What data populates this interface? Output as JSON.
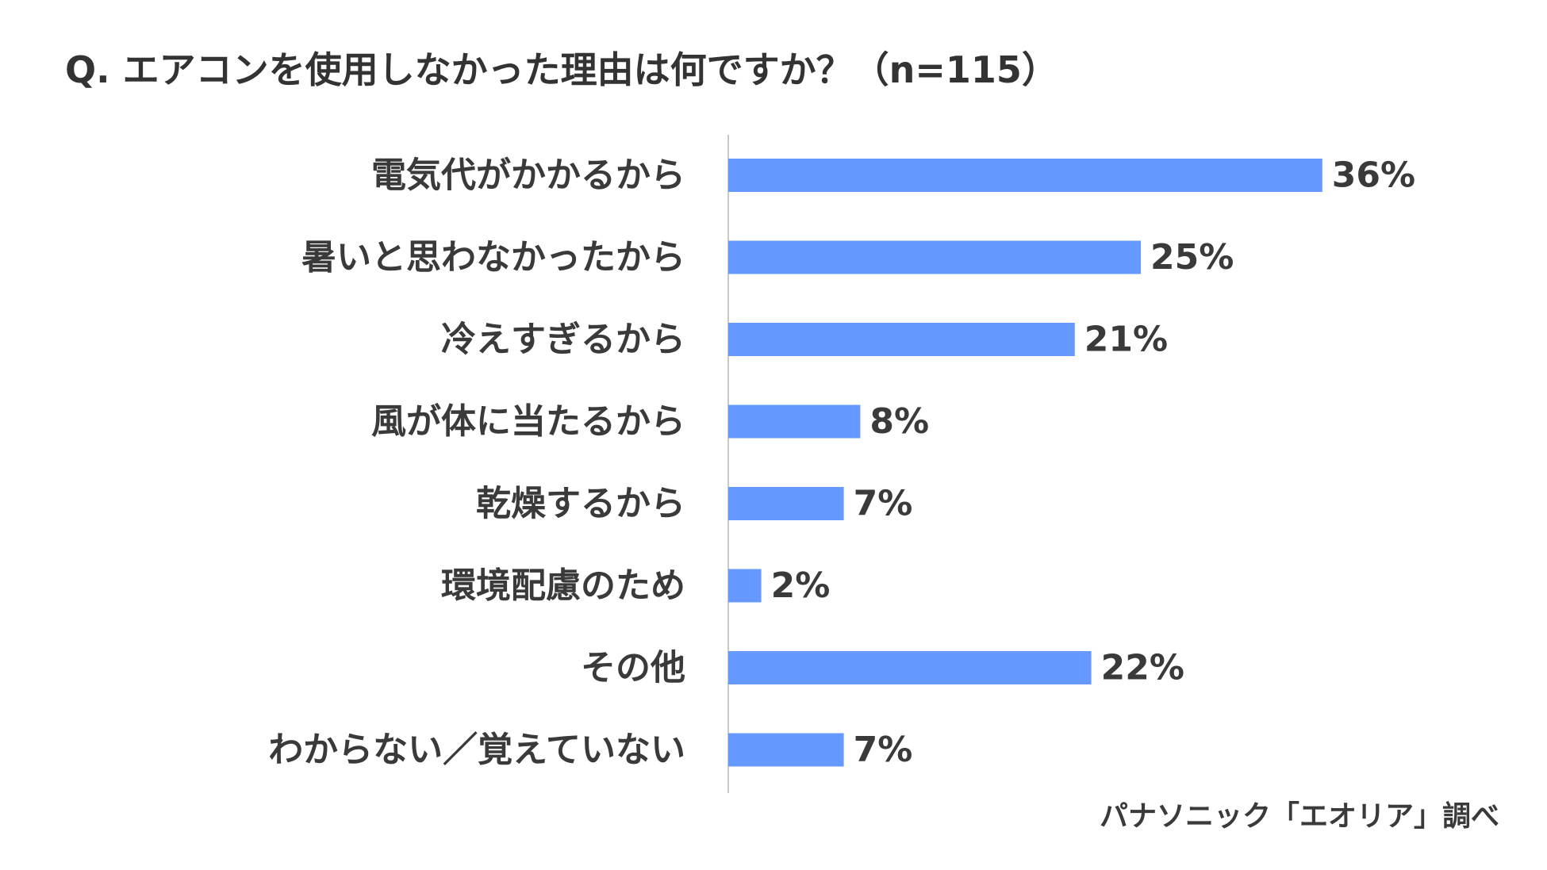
{
  "chart_data": {
    "type": "bar",
    "orientation": "horizontal",
    "title": "Q. エアコンを使用しなかった理由は何ですか？（n=115）",
    "categories": [
      "電気代がかかるから",
      "暑いと思わなかったから",
      "冷えすぎるから",
      "風が体に当たるから",
      "乾燥するから",
      "環境配慮のため",
      "その他",
      "わからない／覚えていない"
    ],
    "values": [
      36,
      25,
      21,
      8,
      7,
      2,
      22,
      7
    ],
    "value_labels": [
      "36%",
      "25%",
      "21%",
      "8%",
      "7%",
      "2%",
      "22%",
      "7%"
    ],
    "unit": "%",
    "xlim": [
      0,
      50
    ],
    "grid": false,
    "legend": "none",
    "bar_color": "#6699ff"
  },
  "source": "パナソニック「エオリア」調べ"
}
